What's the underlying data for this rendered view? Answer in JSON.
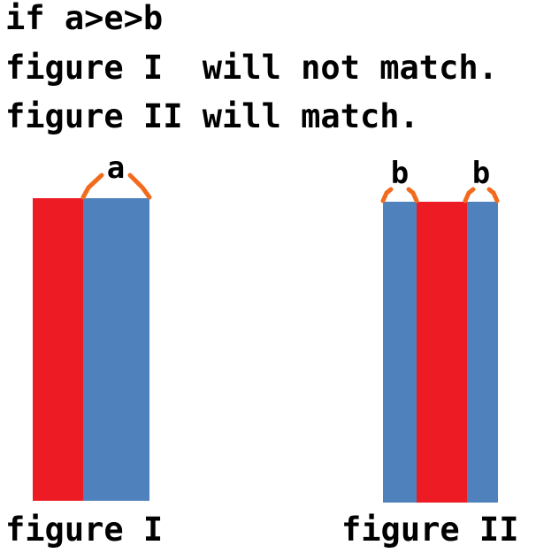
{
  "text": {
    "line1": "if a>e>b",
    "line2": "figure I  will not match.",
    "line3": "figure II will match."
  },
  "figures": [
    {
      "caption": "figure I",
      "bars": [
        "red",
        "blue"
      ],
      "bracket_label": "a"
    },
    {
      "caption": "figure II",
      "bars": [
        "blue",
        "red",
        "blue"
      ],
      "bracket_labels": [
        "b",
        "b"
      ]
    }
  ],
  "colors": {
    "red": "#ed1c24",
    "blue": "#4f81bd",
    "bracket": "#f26b1d",
    "text": "#000000"
  }
}
